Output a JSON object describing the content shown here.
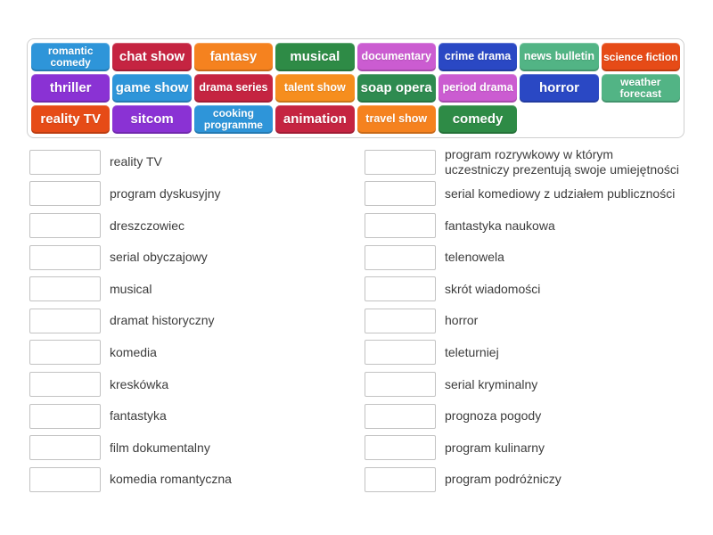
{
  "page": {
    "background": "#ffffff"
  },
  "word_bank": {
    "tiles": [
      {
        "label": "romantic comedy",
        "color": "#2e95d9"
      },
      {
        "label": "chat show",
        "color": "#c52441"
      },
      {
        "label": "fantasy",
        "color": "#f5821f"
      },
      {
        "label": "musical",
        "color": "#2e8b46"
      },
      {
        "label": "documentary",
        "color": "#cb5cd1"
      },
      {
        "label": "crime drama",
        "color": "#2a48c4"
      },
      {
        "label": "news bulletin",
        "color": "#52b485"
      },
      {
        "label": "science fiction",
        "color": "#e64b17"
      },
      {
        "label": "thriller",
        "color": "#8a32d4"
      },
      {
        "label": "game show",
        "color": "#2e95d9"
      },
      {
        "label": "drama series",
        "color": "#c52441"
      },
      {
        "label": "talent show",
        "color": "#f68e1e"
      },
      {
        "label": "soap opera",
        "color": "#2e8b50"
      },
      {
        "label": "period drama",
        "color": "#cb5cd1"
      },
      {
        "label": "horror",
        "color": "#2a48c4"
      },
      {
        "label": "weather forecast",
        "color": "#52b485"
      },
      {
        "label": "reality TV",
        "color": "#e64b17"
      },
      {
        "label": "sitcom",
        "color": "#8a32d4"
      },
      {
        "label": "cooking programme",
        "color": "#2e95d9"
      },
      {
        "label": "animation",
        "color": "#c52441"
      },
      {
        "label": "travel show",
        "color": "#f5821f"
      },
      {
        "label": "comedy",
        "color": "#2e8b46"
      }
    ]
  },
  "match_list": {
    "left": [
      "reality TV",
      "program dyskusyjny",
      "dreszczowiec",
      "serial obyczajowy",
      "musical",
      "dramat historyczny",
      "komedia",
      "kreskówka",
      "fantastyka",
      "film dokumentalny",
      "komedia romantyczna"
    ],
    "right": [
      "program rozrywkowy w którym\nuczestniczy prezentują swoje umiejętności",
      "serial komediowy z udziałem publiczności",
      "fantastyka naukowa",
      "telenowela",
      "skrót wiadomości",
      "horror",
      "teleturniej",
      "serial kryminalny",
      "prognoza pogody",
      "program kulinarny",
      "program podróżniczy"
    ]
  }
}
